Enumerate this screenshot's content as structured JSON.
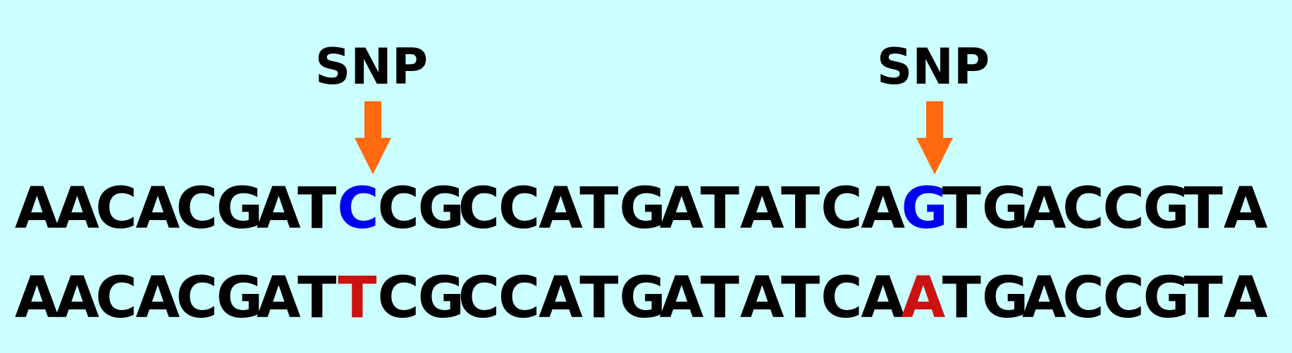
{
  "snp_label": "SNP",
  "sequence_top": "AACACGATCCGCCATGATATCAGTGACCGTA",
  "sequence_bottom": "AACACGATTCGCCATGATATCAATGACCGTA",
  "snp_positions": [
    9,
    23
  ],
  "colors": {
    "background": "#ccffff",
    "text": "#000000",
    "top_variant": "#0000ee",
    "bottom_variant": "#cc1111",
    "arrow": "#ff6a10"
  }
}
